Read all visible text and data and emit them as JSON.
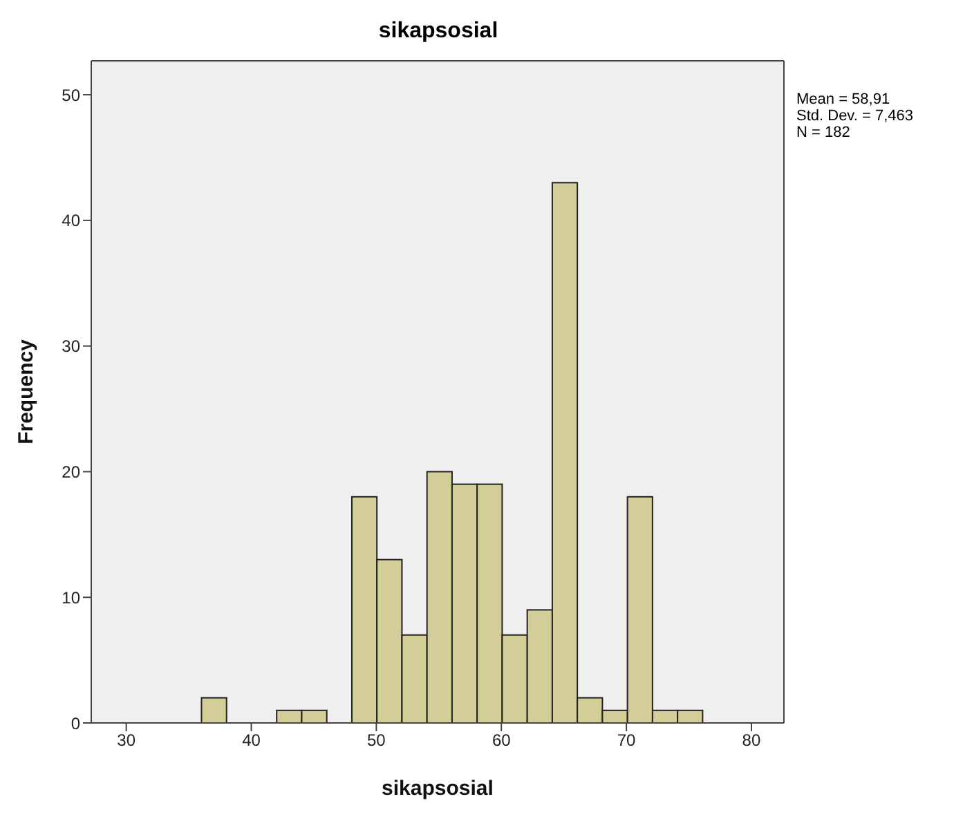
{
  "chart_data": {
    "type": "histogram",
    "title": "sikapsosial",
    "xlabel": "sikapsosial",
    "ylabel": "Frequency",
    "bins": [
      36,
      38,
      40,
      42,
      44,
      46,
      48,
      50,
      52,
      54,
      56,
      58,
      60,
      62,
      64,
      66,
      68,
      70,
      72,
      74,
      76
    ],
    "values": [
      2,
      0,
      0,
      1,
      1,
      0,
      18,
      13,
      7,
      20,
      19,
      19,
      7,
      9,
      43,
      2,
      1,
      18,
      1,
      1
    ],
    "color": "#d3ce97",
    "xlim": [
      27.2,
      82.6
    ],
    "xticks": [
      30,
      40,
      50,
      60,
      70,
      80
    ],
    "ylim": [
      0,
      52.7
    ],
    "yticks": [
      0,
      10,
      20,
      30,
      40,
      50
    ],
    "grid": false,
    "annotations": [
      "Mean = 58,91",
      "Std. Dev. = 7,463",
      "N = 182"
    ]
  }
}
